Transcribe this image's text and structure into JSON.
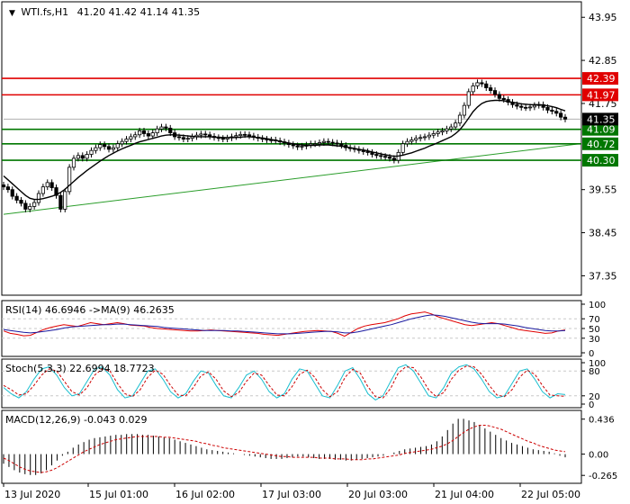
{
  "chart_data": [
    {
      "type": "candlestick",
      "symbol_label": "WTI.fs,H1",
      "ohlc_label": "41.20 41.42 41.14 41.35",
      "y_ticks": [
        "43.95",
        "42.85",
        "41.75",
        "39.55",
        "38.45",
        "37.35"
      ],
      "ylim": [
        36.9,
        44.3
      ],
      "x_ticks": [
        "13 Jul 2020",
        "15 Jul 01:00",
        "16 Jul 02:00",
        "17 Jul 03:00",
        "20 Jul 03:00",
        "21 Jul 04:00",
        "22 Jul 05:00"
      ],
      "close_series": [
        39.62,
        39.55,
        39.38,
        39.28,
        39.2,
        39.05,
        39.12,
        39.22,
        39.45,
        39.62,
        39.73,
        39.6,
        39.4,
        39.05,
        39.5,
        40.12,
        40.35,
        40.42,
        40.35,
        40.45,
        40.55,
        40.62,
        40.7,
        40.65,
        40.58,
        40.62,
        40.72,
        40.78,
        40.84,
        40.9,
        40.95,
        41.05,
        40.98,
        40.92,
        41.0,
        41.1,
        41.15,
        41.12,
        41.0,
        40.9,
        40.88,
        40.84,
        40.86,
        40.9,
        40.94,
        40.97,
        40.95,
        40.91,
        40.88,
        40.86,
        40.84,
        40.87,
        40.9,
        40.93,
        40.96,
        40.95,
        40.92,
        40.89,
        40.86,
        40.84,
        40.82,
        40.82,
        40.8,
        40.77,
        40.74,
        40.7,
        40.67,
        40.64,
        40.66,
        40.69,
        40.72,
        40.72,
        40.75,
        40.78,
        40.76,
        40.74,
        40.72,
        40.68,
        40.62,
        40.6,
        40.58,
        40.55,
        40.52,
        40.5,
        40.45,
        40.42,
        40.4,
        40.38,
        40.35,
        40.3,
        40.5,
        40.72,
        40.78,
        40.82,
        40.86,
        40.88,
        40.9,
        40.94,
        40.98,
        41.02,
        41.05,
        41.1,
        41.15,
        41.25,
        41.45,
        41.7,
        42.05,
        42.2,
        42.28,
        42.25,
        42.15,
        42.08,
        41.98,
        41.88,
        41.85,
        41.78,
        41.72,
        41.68,
        41.65,
        41.64,
        41.66,
        41.7,
        41.72,
        41.65,
        41.58,
        41.55,
        41.5,
        41.4,
        41.35
      ],
      "ma_series": [
        39.9,
        39.8,
        39.7,
        39.6,
        39.5,
        39.4,
        39.33,
        39.3,
        39.3,
        39.32,
        39.35,
        39.38,
        39.42,
        39.48,
        39.56,
        39.66,
        39.76,
        39.86,
        39.95,
        40.04,
        40.12,
        40.2,
        40.28,
        40.35,
        40.42,
        40.48,
        40.54,
        40.59,
        40.64,
        40.68,
        40.73,
        40.77,
        40.8,
        40.83,
        40.86,
        40.89,
        40.92,
        40.94,
        40.95,
        40.95,
        40.94,
        40.93,
        40.92,
        40.91,
        40.9,
        40.9,
        40.9,
        40.9,
        40.89,
        40.89,
        40.88,
        40.88,
        40.88,
        40.88,
        40.89,
        40.9,
        40.9,
        40.89,
        40.88,
        40.87,
        40.85,
        40.83,
        40.81,
        40.78,
        40.76,
        40.74,
        40.72,
        40.7,
        40.69,
        40.68,
        40.68,
        40.68,
        40.69,
        40.69,
        40.69,
        40.68,
        40.67,
        40.66,
        40.64,
        40.62,
        40.6,
        40.58,
        40.56,
        40.54,
        40.51,
        40.49,
        40.46,
        40.44,
        40.42,
        40.4,
        40.41,
        40.43,
        40.46,
        40.49,
        40.53,
        40.57,
        40.61,
        40.66,
        40.7,
        40.75,
        40.8,
        40.85,
        40.9,
        40.98,
        41.08,
        41.22,
        41.38,
        41.54,
        41.66,
        41.75,
        41.8,
        41.82,
        41.83,
        41.83,
        41.82,
        41.8,
        41.78,
        41.76,
        41.74,
        41.73,
        41.72,
        41.72,
        41.72,
        41.71,
        41.69,
        41.67,
        41.64,
        41.6,
        41.56
      ],
      "price_lines": [
        {
          "value": 42.39,
          "label": "42.39",
          "color": "#e00000"
        },
        {
          "value": 41.97,
          "label": "41.97",
          "color": "#e00000"
        },
        {
          "value": 41.09,
          "label": "41.09",
          "color": "#007700"
        },
        {
          "value": 40.72,
          "label": "40.72",
          "color": "#007700"
        },
        {
          "value": 40.3,
          "label": "40.30",
          "color": "#007700"
        }
      ],
      "current_price": {
        "value": 41.35,
        "label": "41.35"
      },
      "trendline": {
        "start": 38.92,
        "end": 40.72,
        "color": "#2a9d2a"
      },
      "colors": {
        "up": "#000000",
        "down": "#000000",
        "up_fill": "#ffffff",
        "down_fill": "#000000",
        "ma": "#000000"
      }
    },
    {
      "type": "line",
      "title": "RSI(14) 46.6946   ->MA(9) 46.2635",
      "y_ticks": [
        "100",
        "70",
        "50",
        "30",
        "0"
      ],
      "ylim": [
        0,
        100
      ],
      "levels": [
        70,
        50,
        30
      ],
      "series": [
        {
          "values": [
            45,
            40,
            38,
            35,
            36,
            42,
            48,
            52,
            55,
            58,
            56,
            54,
            58,
            62,
            60,
            58,
            60,
            62,
            60,
            57,
            56,
            55,
            52,
            50,
            49,
            48,
            47,
            46,
            45,
            45,
            46,
            47,
            46,
            45,
            44,
            43,
            42,
            41,
            40,
            38,
            37,
            36,
            38,
            40,
            42,
            44,
            45,
            46,
            45,
            44,
            40,
            34,
            42,
            50,
            55,
            58,
            60,
            62,
            66,
            70,
            76,
            80,
            82,
            84,
            80,
            74,
            70,
            66,
            62,
            58,
            56,
            58,
            60,
            62,
            60,
            56,
            52,
            48,
            46,
            44,
            42,
            40,
            41,
            45,
            47
          ],
          "color": "#e00000"
        },
        {
          "values": [
            48,
            46,
            44,
            42,
            41,
            42,
            44,
            46,
            48,
            51,
            53,
            54,
            55,
            56,
            57,
            58,
            58,
            59,
            59,
            58,
            57,
            56,
            55,
            54,
            52,
            51,
            50,
            49,
            48,
            47,
            46,
            46,
            46,
            46,
            45,
            45,
            44,
            43,
            42,
            41,
            40,
            39,
            39,
            39,
            40,
            41,
            42,
            43,
            44,
            44,
            43,
            41,
            41,
            43,
            46,
            49,
            52,
            55,
            58,
            62,
            66,
            70,
            73,
            76,
            78,
            77,
            75,
            72,
            69,
            66,
            63,
            61,
            60,
            60,
            60,
            59,
            57,
            55,
            52,
            50,
            48,
            46,
            45,
            45,
            46
          ],
          "color": "#1a1aa0"
        }
      ]
    },
    {
      "type": "line",
      "title": "Stoch(5,3,3) 22.6994 18.7723",
      "y_ticks": [
        "100",
        "80",
        "20",
        "0"
      ],
      "ylim": [
        0,
        100
      ],
      "levels": [
        80,
        20
      ],
      "series": [
        {
          "values": [
            40,
            25,
            15,
            30,
            60,
            85,
            90,
            70,
            40,
            20,
            25,
            55,
            85,
            90,
            70,
            35,
            15,
            20,
            50,
            80,
            85,
            60,
            30,
            15,
            25,
            55,
            80,
            75,
            45,
            20,
            15,
            40,
            70,
            80,
            60,
            30,
            15,
            25,
            60,
            85,
            80,
            50,
            20,
            15,
            45,
            80,
            88,
            60,
            25,
            10,
            20,
            55,
            88,
            95,
            80,
            50,
            20,
            15,
            40,
            75,
            90,
            95,
            85,
            60,
            30,
            15,
            20,
            50,
            80,
            85,
            60,
            30,
            15,
            25,
            23
          ],
          "color": "#17becf"
        },
        {
          "values": [
            45,
            35,
            22,
            25,
            45,
            70,
            85,
            80,
            55,
            30,
            22,
            40,
            70,
            85,
            80,
            50,
            25,
            18,
            35,
            65,
            82,
            72,
            45,
            22,
            20,
            40,
            68,
            78,
            60,
            32,
            18,
            28,
            55,
            75,
            70,
            45,
            22,
            20,
            42,
            72,
            82,
            65,
            35,
            18,
            30,
            65,
            84,
            75,
            42,
            18,
            15,
            38,
            75,
            90,
            88,
            65,
            35,
            18,
            28,
            60,
            82,
            92,
            90,
            72,
            45,
            22,
            18,
            35,
            65,
            82,
            72,
            45,
            22,
            20,
            19
          ],
          "color": "#cc0000"
        }
      ]
    },
    {
      "type": "bar",
      "title": "MACD(12,26,9) -0.043 0.029",
      "y_ticks": [
        "0.436",
        "0.00",
        "-0.265"
      ],
      "ylim": [
        -0.33,
        0.5
      ],
      "histogram": [
        -0.12,
        -0.16,
        -0.2,
        -0.23,
        -0.25,
        -0.26,
        -0.26,
        -0.24,
        -0.2,
        -0.14,
        -0.08,
        -0.02,
        0.03,
        0.08,
        0.12,
        0.15,
        0.18,
        0.2,
        0.21,
        0.22,
        0.23,
        0.24,
        0.24,
        0.25,
        0.25,
        0.25,
        0.24,
        0.24,
        0.23,
        0.22,
        0.21,
        0.2,
        0.18,
        0.16,
        0.14,
        0.12,
        0.1,
        0.08,
        0.06,
        0.05,
        0.04,
        0.03,
        0.02,
        0.01,
        0.0,
        -0.01,
        -0.02,
        -0.03,
        -0.04,
        -0.05,
        -0.06,
        -0.06,
        -0.06,
        -0.05,
        -0.04,
        -0.03,
        -0.03,
        -0.04,
        -0.05,
        -0.06,
        -0.06,
        -0.06,
        -0.07,
        -0.07,
        -0.08,
        -0.08,
        -0.07,
        -0.06,
        -0.05,
        -0.04,
        -0.03,
        -0.02,
        0.0,
        0.02,
        0.04,
        0.06,
        0.07,
        0.08,
        0.09,
        0.1,
        0.12,
        0.16,
        0.22,
        0.3,
        0.38,
        0.44,
        0.44,
        0.42,
        0.4,
        0.36,
        0.32,
        0.28,
        0.24,
        0.2,
        0.17,
        0.14,
        0.12,
        0.1,
        0.08,
        0.06,
        0.05,
        0.04,
        0.03,
        0.01,
        -0.02,
        -0.04
      ],
      "signal": [
        -0.05,
        -0.08,
        -0.12,
        -0.16,
        -0.19,
        -0.21,
        -0.22,
        -0.23,
        -0.22,
        -0.2,
        -0.17,
        -0.13,
        -0.09,
        -0.05,
        -0.01,
        0.03,
        0.06,
        0.09,
        0.12,
        0.14,
        0.16,
        0.18,
        0.19,
        0.2,
        0.21,
        0.22,
        0.22,
        0.22,
        0.22,
        0.22,
        0.21,
        0.21,
        0.2,
        0.19,
        0.18,
        0.17,
        0.16,
        0.14,
        0.13,
        0.11,
        0.1,
        0.08,
        0.07,
        0.06,
        0.05,
        0.04,
        0.03,
        0.02,
        0.01,
        0.0,
        -0.01,
        -0.02,
        -0.03,
        -0.03,
        -0.04,
        -0.04,
        -0.04,
        -0.04,
        -0.04,
        -0.05,
        -0.05,
        -0.05,
        -0.06,
        -0.06,
        -0.06,
        -0.07,
        -0.07,
        -0.07,
        -0.06,
        -0.06,
        -0.05,
        -0.04,
        -0.03,
        -0.02,
        -0.01,
        0.01,
        0.02,
        0.03,
        0.04,
        0.05,
        0.06,
        0.08,
        0.1,
        0.13,
        0.17,
        0.22,
        0.27,
        0.31,
        0.34,
        0.36,
        0.36,
        0.35,
        0.33,
        0.31,
        0.28,
        0.25,
        0.22,
        0.19,
        0.16,
        0.14,
        0.11,
        0.09,
        0.07,
        0.05,
        0.04,
        0.03
      ],
      "colors": {
        "histogram": "#000000",
        "signal": "#cc0000"
      }
    }
  ]
}
